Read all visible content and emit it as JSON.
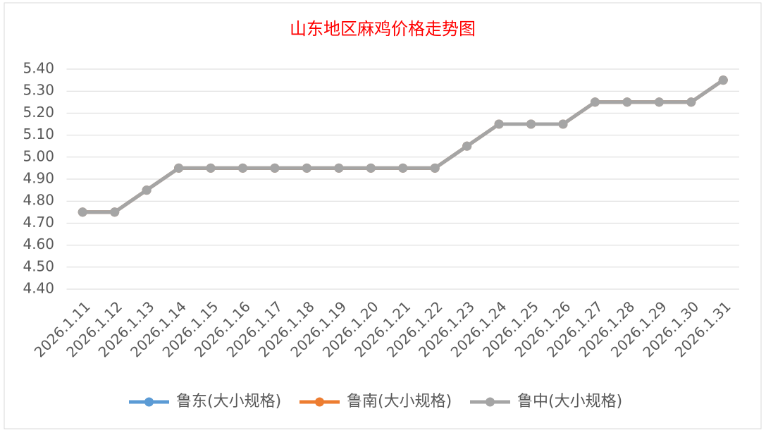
{
  "chart_data": {
    "type": "line",
    "title": "山东地区麻鸡价格走势图",
    "categories": [
      "2026.1.11",
      "2026.1.12",
      "2026.1.13",
      "2026.1.14",
      "2026.1.15",
      "2026.1.16",
      "2026.1.17",
      "2026.1.18",
      "2026.1.19",
      "2026.1.20",
      "2026.1.21",
      "2026.1.22",
      "2026.1.23",
      "2026.1.24",
      "2026.1.25",
      "2026.1.26",
      "2026.1.27",
      "2026.1.28",
      "2026.1.29",
      "2026.1.30",
      "2026.1.31"
    ],
    "series": [
      {
        "name": "鲁东(大小规格)",
        "color": "#5b9bd5",
        "values": [
          4.75,
          4.75,
          4.85,
          4.95,
          4.95,
          4.95,
          4.95,
          4.95,
          4.95,
          4.95,
          4.95,
          4.95,
          5.05,
          5.15,
          5.15,
          5.15,
          5.25,
          5.25,
          5.25,
          5.25,
          5.35
        ]
      },
      {
        "name": "鲁南(大小规格)",
        "color": "#ed7d31",
        "values": [
          4.75,
          4.75,
          4.85,
          4.95,
          4.95,
          4.95,
          4.95,
          4.95,
          4.95,
          4.95,
          4.95,
          4.95,
          5.05,
          5.15,
          5.15,
          5.15,
          5.25,
          5.25,
          5.25,
          5.25,
          5.35
        ]
      },
      {
        "name": "鲁中(大小规格)",
        "color": "#a5a5a5",
        "values": [
          4.75,
          4.75,
          4.85,
          4.95,
          4.95,
          4.95,
          4.95,
          4.95,
          4.95,
          4.95,
          4.95,
          4.95,
          5.05,
          5.15,
          5.15,
          5.15,
          5.25,
          5.25,
          5.25,
          5.25,
          5.35
        ]
      }
    ],
    "ylim": [
      4.4,
      5.4
    ],
    "yticks": [
      {
        "value": 4.4,
        "label": "4.40"
      },
      {
        "value": 4.5,
        "label": "4.50"
      },
      {
        "value": 4.6,
        "label": "4.60"
      },
      {
        "value": 4.7,
        "label": "4.70"
      },
      {
        "value": 4.8,
        "label": "4.80"
      },
      {
        "value": 4.9,
        "label": "4.90"
      },
      {
        "value": 5.0,
        "label": "5.00"
      },
      {
        "value": 5.1,
        "label": "5.10"
      },
      {
        "value": 5.2,
        "label": "5.20"
      },
      {
        "value": 5.3,
        "label": "5.30"
      },
      {
        "value": 5.4,
        "label": "5.40"
      }
    ],
    "grid": true,
    "legend": "bottom",
    "title_color": "#ff0000"
  }
}
